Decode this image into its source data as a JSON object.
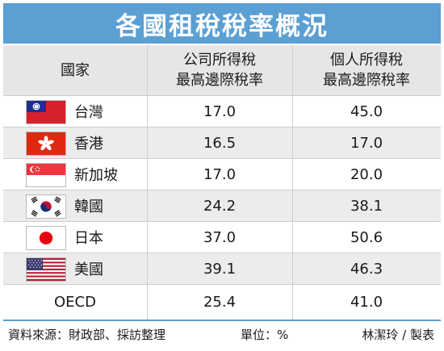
{
  "title": "各國租稅稅率概況",
  "header": {
    "country": "國家",
    "corporate_line1": "公司所得稅",
    "corporate_line2": "最高邊際稅率",
    "personal_line1": "個人所得稅",
    "personal_line2": "最高邊際稅率"
  },
  "rows": [
    {
      "name": "台灣",
      "flag": "taiwan-flag-icon",
      "corporate": "17.0",
      "personal": "45.0"
    },
    {
      "name": "香港",
      "flag": "hongkong-flag-icon",
      "corporate": "16.5",
      "personal": "17.0"
    },
    {
      "name": "新加坡",
      "flag": "singapore-flag-icon",
      "corporate": "17.0",
      "personal": "20.0"
    },
    {
      "name": "韓國",
      "flag": "korea-flag-icon",
      "corporate": "24.2",
      "personal": "38.1"
    },
    {
      "name": "日本",
      "flag": "japan-flag-icon",
      "corporate": "37.0",
      "personal": "50.6"
    },
    {
      "name": "美國",
      "flag": "usa-flag-icon",
      "corporate": "39.1",
      "personal": "46.3"
    },
    {
      "name": "OECD",
      "flag": "",
      "corporate": "25.4",
      "personal": "41.0"
    }
  ],
  "footer": {
    "source": "資料來源：財政部、採訪整理",
    "unit": "單位：%",
    "author": "林潔玲 / 製表"
  },
  "colors": {
    "title_bg": "#5b9fd3",
    "header_bg": "#e6e6e6",
    "alt_row_bg": "#ececec"
  }
}
